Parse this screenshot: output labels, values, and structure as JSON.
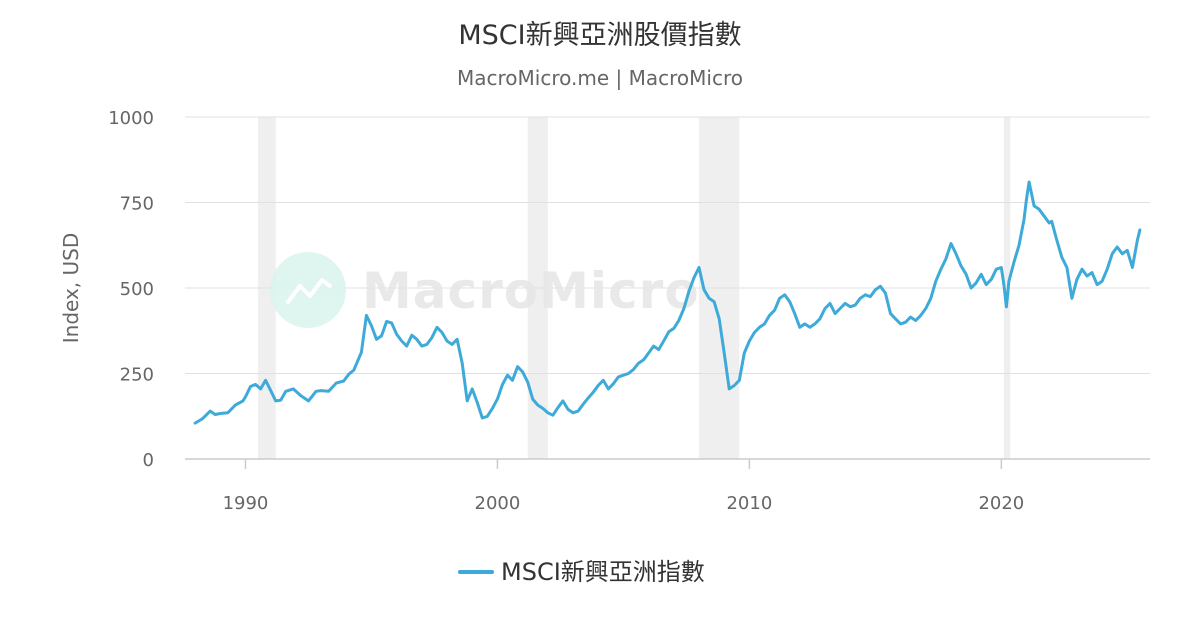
{
  "chart_data": {
    "type": "line",
    "title": "MSCI新興亞洲股價指數",
    "subtitle": "MacroMicro.me | MacroMicro",
    "ylabel": "Index, USD",
    "xlabel": "",
    "ylim": [
      0,
      1000
    ],
    "xlim": [
      1987.6,
      2025.9
    ],
    "y_ticks": [
      0,
      250,
      500,
      750,
      1000
    ],
    "x_ticks": [
      1990,
      2000,
      2010,
      2020
    ],
    "grid": true,
    "legend_position": "bottom-center",
    "recession_bands": [
      [
        1990.5,
        1991.2
      ],
      [
        2001.2,
        2002.0
      ],
      [
        2008.0,
        2009.6
      ],
      [
        2020.1,
        2020.35
      ]
    ],
    "series": [
      {
        "name": "MSCI新興亞洲指數",
        "color": "#3eaad9",
        "points": [
          [
            1988.0,
            105
          ],
          [
            1988.3,
            118
          ],
          [
            1988.6,
            140
          ],
          [
            1988.8,
            130
          ],
          [
            1989.0,
            133
          ],
          [
            1989.3,
            135
          ],
          [
            1989.6,
            158
          ],
          [
            1989.9,
            170
          ],
          [
            1990.0,
            182
          ],
          [
            1990.2,
            212
          ],
          [
            1990.4,
            218
          ],
          [
            1990.6,
            205
          ],
          [
            1990.8,
            230
          ],
          [
            1991.0,
            200
          ],
          [
            1991.2,
            170
          ],
          [
            1991.4,
            172
          ],
          [
            1991.6,
            198
          ],
          [
            1991.9,
            205
          ],
          [
            1992.2,
            185
          ],
          [
            1992.5,
            170
          ],
          [
            1992.8,
            198
          ],
          [
            1993.0,
            200
          ],
          [
            1993.3,
            198
          ],
          [
            1993.6,
            222
          ],
          [
            1993.9,
            228
          ],
          [
            1994.1,
            248
          ],
          [
            1994.3,
            260
          ],
          [
            1994.6,
            312
          ],
          [
            1994.8,
            420
          ],
          [
            1995.0,
            390
          ],
          [
            1995.2,
            350
          ],
          [
            1995.4,
            360
          ],
          [
            1995.6,
            402
          ],
          [
            1995.8,
            398
          ],
          [
            1996.0,
            365
          ],
          [
            1996.2,
            345
          ],
          [
            1996.4,
            330
          ],
          [
            1996.6,
            362
          ],
          [
            1996.8,
            350
          ],
          [
            1997.0,
            330
          ],
          [
            1997.2,
            335
          ],
          [
            1997.4,
            355
          ],
          [
            1997.6,
            385
          ],
          [
            1997.8,
            370
          ],
          [
            1998.0,
            345
          ],
          [
            1998.2,
            335
          ],
          [
            1998.4,
            350
          ],
          [
            1998.6,
            280
          ],
          [
            1998.8,
            170
          ],
          [
            1999.0,
            205
          ],
          [
            1999.2,
            165
          ],
          [
            1999.4,
            120
          ],
          [
            1999.6,
            125
          ],
          [
            1999.8,
            148
          ],
          [
            2000.0,
            175
          ],
          [
            2000.2,
            218
          ],
          [
            2000.4,
            245
          ],
          [
            2000.6,
            230
          ],
          [
            2000.8,
            270
          ],
          [
            2001.0,
            255
          ],
          [
            2001.2,
            225
          ],
          [
            2001.4,
            175
          ],
          [
            2001.6,
            158
          ],
          [
            2001.8,
            148
          ],
          [
            2002.0,
            135
          ],
          [
            2002.2,
            128
          ],
          [
            2002.4,
            150
          ],
          [
            2002.6,
            170
          ],
          [
            2002.8,
            145
          ],
          [
            2003.0,
            135
          ],
          [
            2003.2,
            140
          ],
          [
            2003.4,
            160
          ],
          [
            2003.6,
            178
          ],
          [
            2003.8,
            195
          ],
          [
            2004.0,
            215
          ],
          [
            2004.2,
            230
          ],
          [
            2004.4,
            205
          ],
          [
            2004.6,
            220
          ],
          [
            2004.8,
            240
          ],
          [
            2005.0,
            245
          ],
          [
            2005.2,
            250
          ],
          [
            2005.4,
            262
          ],
          [
            2005.6,
            280
          ],
          [
            2005.8,
            290
          ],
          [
            2006.0,
            310
          ],
          [
            2006.2,
            330
          ],
          [
            2006.4,
            320
          ],
          [
            2006.6,
            345
          ],
          [
            2006.8,
            372
          ],
          [
            2007.0,
            382
          ],
          [
            2007.2,
            405
          ],
          [
            2007.4,
            440
          ],
          [
            2007.6,
            490
          ],
          [
            2007.8,
            530
          ],
          [
            2008.0,
            560
          ],
          [
            2008.2,
            495
          ],
          [
            2008.4,
            470
          ],
          [
            2008.6,
            460
          ],
          [
            2008.8,
            410
          ],
          [
            2009.0,
            310
          ],
          [
            2009.2,
            205
          ],
          [
            2009.4,
            215
          ],
          [
            2009.6,
            230
          ],
          [
            2009.8,
            310
          ],
          [
            2010.0,
            345
          ],
          [
            2010.2,
            370
          ],
          [
            2010.4,
            385
          ],
          [
            2010.6,
            395
          ],
          [
            2010.8,
            420
          ],
          [
            2011.0,
            435
          ],
          [
            2011.2,
            470
          ],
          [
            2011.4,
            480
          ],
          [
            2011.6,
            460
          ],
          [
            2011.8,
            425
          ],
          [
            2012.0,
            385
          ],
          [
            2012.2,
            395
          ],
          [
            2012.4,
            385
          ],
          [
            2012.6,
            395
          ],
          [
            2012.8,
            410
          ],
          [
            2013.0,
            440
          ],
          [
            2013.2,
            455
          ],
          [
            2013.4,
            425
          ],
          [
            2013.6,
            440
          ],
          [
            2013.8,
            455
          ],
          [
            2014.0,
            445
          ],
          [
            2014.2,
            450
          ],
          [
            2014.4,
            470
          ],
          [
            2014.6,
            480
          ],
          [
            2014.8,
            475
          ],
          [
            2015.0,
            495
          ],
          [
            2015.2,
            505
          ],
          [
            2015.4,
            485
          ],
          [
            2015.6,
            425
          ],
          [
            2015.8,
            410
          ],
          [
            2016.0,
            395
          ],
          [
            2016.2,
            400
          ],
          [
            2016.4,
            415
          ],
          [
            2016.6,
            405
          ],
          [
            2016.8,
            420
          ],
          [
            2017.0,
            440
          ],
          [
            2017.2,
            470
          ],
          [
            2017.4,
            520
          ],
          [
            2017.6,
            555
          ],
          [
            2017.8,
            585
          ],
          [
            2018.0,
            630
          ],
          [
            2018.2,
            600
          ],
          [
            2018.4,
            565
          ],
          [
            2018.6,
            540
          ],
          [
            2018.8,
            500
          ],
          [
            2019.0,
            515
          ],
          [
            2019.2,
            540
          ],
          [
            2019.4,
            510
          ],
          [
            2019.6,
            525
          ],
          [
            2019.8,
            555
          ],
          [
            2020.0,
            560
          ],
          [
            2020.1,
            510
          ],
          [
            2020.2,
            445
          ],
          [
            2020.3,
            520
          ],
          [
            2020.5,
            575
          ],
          [
            2020.7,
            625
          ],
          [
            2020.9,
            700
          ],
          [
            2021.0,
            760
          ],
          [
            2021.1,
            810
          ],
          [
            2021.3,
            740
          ],
          [
            2021.5,
            730
          ],
          [
            2021.7,
            710
          ],
          [
            2021.9,
            690
          ],
          [
            2022.0,
            695
          ],
          [
            2022.2,
            640
          ],
          [
            2022.4,
            590
          ],
          [
            2022.6,
            560
          ],
          [
            2022.8,
            470
          ],
          [
            2023.0,
            525
          ],
          [
            2023.2,
            555
          ],
          [
            2023.4,
            535
          ],
          [
            2023.6,
            545
          ],
          [
            2023.8,
            510
          ],
          [
            2024.0,
            520
          ],
          [
            2024.2,
            555
          ],
          [
            2024.4,
            600
          ],
          [
            2024.6,
            620
          ],
          [
            2024.8,
            600
          ],
          [
            2025.0,
            610
          ],
          [
            2025.2,
            560
          ],
          [
            2025.4,
            640
          ],
          [
            2025.5,
            670
          ]
        ]
      }
    ]
  },
  "watermark": {
    "text": "MacroMicro"
  }
}
